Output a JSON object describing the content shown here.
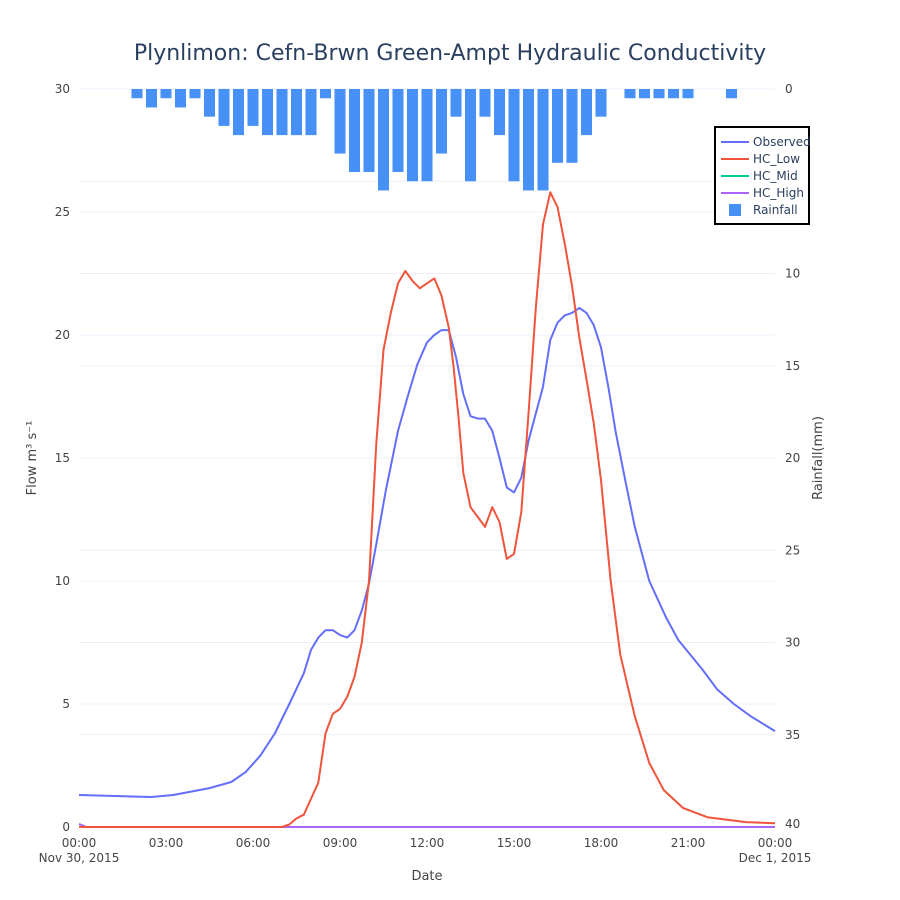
{
  "chart_data": {
    "type": "line",
    "title": "Plynlimon: Cefn-Brwn Green-Ampt Hydraulic Conductivity",
    "xlabel": "Date",
    "ylabel": "Flow m³ s⁻¹",
    "y2label": "Rainfall(mm)",
    "xlim": [
      "2015-11-30T00:00",
      "2015-12-01T00:00"
    ],
    "ylim": [
      0,
      30
    ],
    "y2lim": [
      40,
      0
    ],
    "y2_reversed": true,
    "grid": true,
    "legend_position": "top-right",
    "x_ticks": [
      {
        "t": "2015-11-30T00:00",
        "label": "00:00",
        "sub": "Nov 30, 2015"
      },
      {
        "t": "2015-11-30T03:00",
        "label": "03:00"
      },
      {
        "t": "2015-11-30T06:00",
        "label": "06:00"
      },
      {
        "t": "2015-11-30T09:00",
        "label": "09:00"
      },
      {
        "t": "2015-11-30T12:00",
        "label": "12:00"
      },
      {
        "t": "2015-11-30T15:00",
        "label": "15:00"
      },
      {
        "t": "2015-11-30T18:00",
        "label": "18:00"
      },
      {
        "t": "2015-11-30T21:00",
        "label": "21:00"
      },
      {
        "t": "2015-12-01T00:00",
        "label": "00:00",
        "sub": "Dec 1, 2015"
      }
    ],
    "y_ticks": [
      0,
      5,
      10,
      15,
      20,
      25,
      30
    ],
    "y2_ticks": [
      0,
      5,
      10,
      15,
      20,
      25,
      30,
      35,
      40
    ],
    "series": [
      {
        "name": "Observed",
        "color": "#636efa",
        "points": [
          [
            "2015-11-30T00:00",
            1.3
          ],
          [
            "2015-11-30T02:30",
            1.22
          ],
          [
            "2015-11-30T03:15",
            1.3
          ],
          [
            "2015-11-30T04:30",
            1.58
          ],
          [
            "2015-11-30T05:15",
            1.83
          ],
          [
            "2015-11-30T05:45",
            2.24
          ],
          [
            "2015-11-30T06:15",
            2.9
          ],
          [
            "2015-11-30T06:45",
            3.8
          ],
          [
            "2015-11-30T07:15",
            5.0
          ],
          [
            "2015-11-30T07:45",
            6.25
          ],
          [
            "2015-11-30T08:00",
            7.2
          ],
          [
            "2015-11-30T08:15",
            7.7
          ],
          [
            "2015-11-30T08:30",
            8.0
          ],
          [
            "2015-11-30T08:45",
            8.0
          ],
          [
            "2015-11-30T09:00",
            7.8
          ],
          [
            "2015-11-30T09:15",
            7.7
          ],
          [
            "2015-11-30T09:30",
            8.0
          ],
          [
            "2015-11-30T09:45",
            8.8
          ],
          [
            "2015-11-30T10:00",
            9.9
          ],
          [
            "2015-11-30T10:15",
            11.5
          ],
          [
            "2015-11-30T10:35",
            13.7
          ],
          [
            "2015-11-30T11:00",
            16.1
          ],
          [
            "2015-11-30T11:20",
            17.5
          ],
          [
            "2015-11-30T11:40",
            18.8
          ],
          [
            "2015-11-30T12:00",
            19.7
          ],
          [
            "2015-11-30T12:15",
            20.0
          ],
          [
            "2015-11-30T12:30",
            20.2
          ],
          [
            "2015-11-30T12:45",
            20.2
          ],
          [
            "2015-11-30T13:00",
            19.1
          ],
          [
            "2015-11-30T13:15",
            17.6
          ],
          [
            "2015-11-30T13:30",
            16.7
          ],
          [
            "2015-11-30T13:45",
            16.6
          ],
          [
            "2015-11-30T14:00",
            16.6
          ],
          [
            "2015-11-30T14:15",
            16.1
          ],
          [
            "2015-11-30T14:30",
            15.0
          ],
          [
            "2015-11-30T14:45",
            13.8
          ],
          [
            "2015-11-30T15:00",
            13.6
          ],
          [
            "2015-11-30T15:15",
            14.2
          ],
          [
            "2015-11-30T15:30",
            15.7
          ],
          [
            "2015-11-30T16:00",
            17.9
          ],
          [
            "2015-11-30T16:15",
            19.8
          ],
          [
            "2015-11-30T16:30",
            20.5
          ],
          [
            "2015-11-30T16:45",
            20.8
          ],
          [
            "2015-11-30T17:00",
            20.9
          ],
          [
            "2015-11-30T17:15",
            21.1
          ],
          [
            "2015-11-30T17:30",
            20.9
          ],
          [
            "2015-11-30T17:45",
            20.4
          ],
          [
            "2015-11-30T18:00",
            19.5
          ],
          [
            "2015-11-30T18:15",
            17.9
          ],
          [
            "2015-11-30T18:30",
            16.1
          ],
          [
            "2015-11-30T18:50",
            14.1
          ],
          [
            "2015-11-30T19:10",
            12.2
          ],
          [
            "2015-11-30T19:40",
            10.0
          ],
          [
            "2015-11-30T20:15",
            8.5
          ],
          [
            "2015-11-30T20:40",
            7.6
          ],
          [
            "2015-11-30T21:30",
            6.4
          ],
          [
            "2015-11-30T22:00",
            5.6
          ],
          [
            "2015-11-30T22:35",
            5.0
          ],
          [
            "2015-11-30T23:10",
            4.5
          ],
          [
            "2015-12-01T00:00",
            3.9
          ]
        ]
      },
      {
        "name": "HC_Low",
        "color": "#EF553B",
        "points": [
          [
            "2015-11-30T00:00",
            0.0
          ],
          [
            "2015-11-30T07:00",
            0.0
          ],
          [
            "2015-11-30T07:15",
            0.1
          ],
          [
            "2015-11-30T07:30",
            0.35
          ],
          [
            "2015-11-30T07:45",
            0.5
          ],
          [
            "2015-11-30T08:15",
            1.8
          ],
          [
            "2015-11-30T08:30",
            3.8
          ],
          [
            "2015-11-30T08:45",
            4.6
          ],
          [
            "2015-11-30T09:00",
            4.8
          ],
          [
            "2015-11-30T09:15",
            5.3
          ],
          [
            "2015-11-30T09:30",
            6.1
          ],
          [
            "2015-11-30T09:45",
            7.5
          ],
          [
            "2015-11-30T10:00",
            10.0
          ],
          [
            "2015-11-30T10:15",
            15.6
          ],
          [
            "2015-11-30T10:30",
            19.4
          ],
          [
            "2015-11-30T10:45",
            20.9
          ],
          [
            "2015-11-30T11:00",
            22.1
          ],
          [
            "2015-11-30T11:15",
            22.6
          ],
          [
            "2015-11-30T11:30",
            22.2
          ],
          [
            "2015-11-30T11:45",
            21.9
          ],
          [
            "2015-11-30T12:00",
            22.1
          ],
          [
            "2015-11-30T12:15",
            22.3
          ],
          [
            "2015-11-30T12:30",
            21.6
          ],
          [
            "2015-11-30T12:45",
            20.3
          ],
          [
            "2015-11-30T12:55",
            18.7
          ],
          [
            "2015-11-30T13:05",
            16.7
          ],
          [
            "2015-11-30T13:15",
            14.4
          ],
          [
            "2015-11-30T13:30",
            13.0
          ],
          [
            "2015-11-30T13:45",
            12.6
          ],
          [
            "2015-11-30T14:00",
            12.2
          ],
          [
            "2015-11-30T14:15",
            13.0
          ],
          [
            "2015-11-30T14:30",
            12.4
          ],
          [
            "2015-11-30T14:45",
            10.9
          ],
          [
            "2015-11-30T15:00",
            11.1
          ],
          [
            "2015-11-30T15:15",
            12.8
          ],
          [
            "2015-11-30T15:30",
            16.8
          ],
          [
            "2015-11-30T15:45",
            21.1
          ],
          [
            "2015-11-30T16:00",
            24.5
          ],
          [
            "2015-11-30T16:15",
            25.8
          ],
          [
            "2015-11-30T16:30",
            25.2
          ],
          [
            "2015-11-30T16:45",
            23.7
          ],
          [
            "2015-11-30T17:00",
            22.0
          ],
          [
            "2015-11-30T17:15",
            19.9
          ],
          [
            "2015-11-30T17:30",
            18.2
          ],
          [
            "2015-11-30T17:45",
            16.4
          ],
          [
            "2015-11-30T18:00",
            14.1
          ],
          [
            "2015-11-30T18:20",
            10.0
          ],
          [
            "2015-11-30T18:40",
            7.0
          ],
          [
            "2015-11-30T19:10",
            4.5
          ],
          [
            "2015-11-30T19:40",
            2.6
          ],
          [
            "2015-11-30T20:10",
            1.5
          ],
          [
            "2015-11-30T20:50",
            0.77
          ],
          [
            "2015-11-30T21:40",
            0.4
          ],
          [
            "2015-11-30T23:00",
            0.2
          ],
          [
            "2015-12-01T00:00",
            0.15
          ]
        ]
      },
      {
        "name": "HC_Mid",
        "color": "#00cc96",
        "points": [
          [
            "2015-11-30T00:00",
            0.12
          ],
          [
            "2015-11-30T00:15",
            0.0
          ],
          [
            "2015-12-01T00:00",
            0.0
          ]
        ]
      },
      {
        "name": "HC_High",
        "color": "#ab63fa",
        "points": [
          [
            "2015-11-30T00:00",
            0.12
          ],
          [
            "2015-11-30T00:15",
            0.0
          ],
          [
            "2015-12-01T00:00",
            0.0
          ]
        ]
      }
    ],
    "rainfall": {
      "name": "Rainfall",
      "color": "#4790f5",
      "axis": "y2",
      "points": [
        [
          "2015-11-30T02:00",
          0.5
        ],
        [
          "2015-11-30T02:30",
          1.0
        ],
        [
          "2015-11-30T03:00",
          0.5
        ],
        [
          "2015-11-30T03:30",
          1.0
        ],
        [
          "2015-11-30T04:00",
          0.5
        ],
        [
          "2015-11-30T04:30",
          1.5
        ],
        [
          "2015-11-30T05:00",
          2.0
        ],
        [
          "2015-11-30T05:30",
          2.5
        ],
        [
          "2015-11-30T06:00",
          2.0
        ],
        [
          "2015-11-30T06:30",
          2.5
        ],
        [
          "2015-11-30T07:00",
          2.5
        ],
        [
          "2015-11-30T07:30",
          2.5
        ],
        [
          "2015-11-30T08:00",
          2.5
        ],
        [
          "2015-11-30T08:30",
          0.5
        ],
        [
          "2015-11-30T09:00",
          3.5
        ],
        [
          "2015-11-30T09:30",
          4.5
        ],
        [
          "2015-11-30T10:00",
          4.5
        ],
        [
          "2015-11-30T10:30",
          5.5
        ],
        [
          "2015-11-30T11:00",
          4.5
        ],
        [
          "2015-11-30T11:30",
          5.0
        ],
        [
          "2015-11-30T12:00",
          5.0
        ],
        [
          "2015-11-30T12:30",
          3.5
        ],
        [
          "2015-11-30T13:00",
          1.5
        ],
        [
          "2015-11-30T13:30",
          5.0
        ],
        [
          "2015-11-30T14:00",
          1.5
        ],
        [
          "2015-11-30T14:30",
          2.5
        ],
        [
          "2015-11-30T15:00",
          5.0
        ],
        [
          "2015-11-30T15:30",
          5.5
        ],
        [
          "2015-11-30T16:00",
          5.5
        ],
        [
          "2015-11-30T16:30",
          4.0
        ],
        [
          "2015-11-30T17:00",
          4.0
        ],
        [
          "2015-11-30T17:30",
          2.5
        ],
        [
          "2015-11-30T18:00",
          1.5
        ],
        [
          "2015-11-30T19:00",
          0.5
        ],
        [
          "2015-11-30T19:30",
          0.5
        ],
        [
          "2015-11-30T20:00",
          0.5
        ],
        [
          "2015-11-30T20:30",
          0.5
        ],
        [
          "2015-11-30T21:00",
          0.5
        ],
        [
          "2015-11-30T22:30",
          0.5
        ]
      ]
    }
  }
}
